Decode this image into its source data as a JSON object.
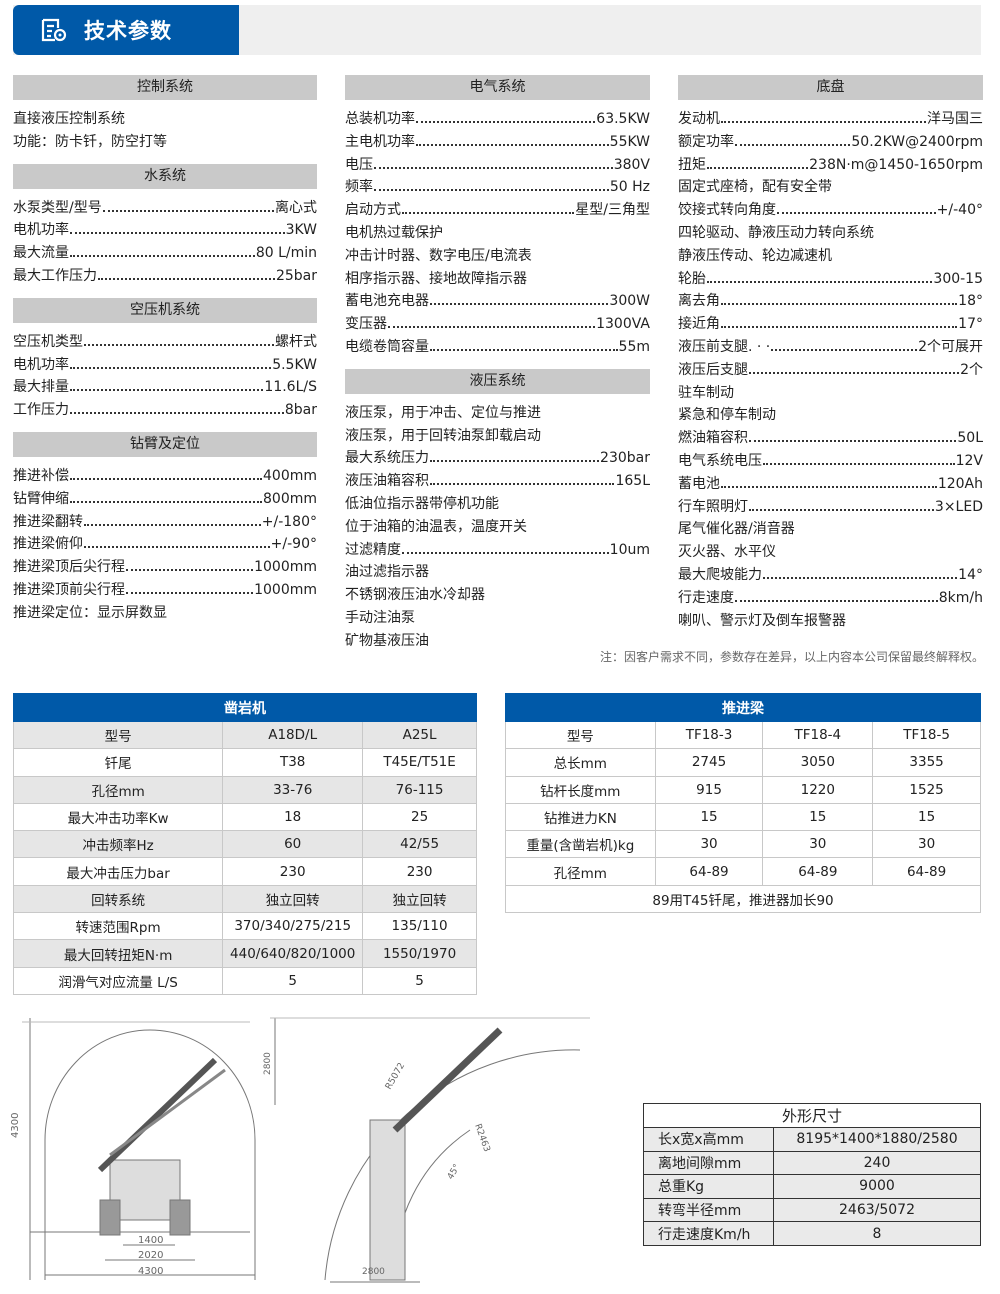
{
  "header": {
    "title": "技术参数",
    "icon": "document-settings-icon"
  },
  "columns": [
    [
      {
        "title": "控制系统",
        "items": [
          {
            "t": "直接液压控制系统"
          },
          {
            "t": "功能：防卡钎，防空打等"
          }
        ]
      },
      {
        "title": "水系统",
        "items": [
          {
            "k": "水泵类型/型号",
            "v": "离心式"
          },
          {
            "k": "电机功率",
            "v": "3KW"
          },
          {
            "k": "最大流量",
            "v": "80 L/min"
          },
          {
            "k": "最大工作压力",
            "v": "25bar"
          }
        ]
      },
      {
        "title": "空压机系统",
        "items": [
          {
            "k": "空压机类型",
            "v": "螺杆式"
          },
          {
            "k": "电机功率",
            "v": "5.5KW"
          },
          {
            "k": "最大排量",
            "v": "11.6L/S"
          },
          {
            "k": "工作压力",
            "v": "8bar"
          }
        ]
      },
      {
        "title": "钻臂及定位",
        "items": [
          {
            "k": "推进补偿",
            "v": "400mm"
          },
          {
            "k": "钻臂伸缩",
            "v": "800mm"
          },
          {
            "k": "推进梁翻转",
            "v": "+/-180°"
          },
          {
            "k": "推进梁俯仰",
            "v": "+/-90°"
          },
          {
            "k": "推进梁顶后尖行程",
            "v": "1000mm"
          },
          {
            "k": "推进梁顶前尖行程",
            "v": "1000mm"
          },
          {
            "t": "推进梁定位：显示屏数显"
          }
        ]
      }
    ],
    [
      {
        "title": "电气系统",
        "items": [
          {
            "k": "总装机功率",
            "v": "63.5KW"
          },
          {
            "k": "主电机功率",
            "v": "55KW"
          },
          {
            "k": "电压",
            "v": "380V"
          },
          {
            "k": "频率",
            "v": "50 Hz"
          },
          {
            "k": "启动方式",
            "v": "星型/三角型"
          },
          {
            "t": "电机热过载保护"
          },
          {
            "t": "冲击计时器、数字电压/电流表"
          },
          {
            "t": "相序指示器、接地故障指示器"
          },
          {
            "k": "蓄电池充电器",
            "v": "300W"
          },
          {
            "k": "变压器",
            "v": "1300VA"
          },
          {
            "k": "电缆卷筒容量",
            "v": "55m"
          }
        ]
      },
      {
        "title": "液压系统",
        "items": [
          {
            "t": "液压泵，用于冲击、定位与推进"
          },
          {
            "t": "液压泵，用于回转油泵卸载启动"
          },
          {
            "k": "最大系统压力",
            "v": "230bar"
          },
          {
            "k": "液压油箱容积",
            "v": "165L"
          },
          {
            "t": "低油位指示器带停机功能"
          },
          {
            "t": "位于油箱的油温表，温度开关"
          },
          {
            "k": "过滤精度",
            "v": "10um"
          },
          {
            "t": "油过滤指示器"
          },
          {
            "t": "不锈钢液压油水冷却器"
          },
          {
            "t": "手动注油泵"
          },
          {
            "t": "矿物基液压油"
          }
        ]
      }
    ],
    [
      {
        "title": "底盘",
        "items": [
          {
            "k": "发动机",
            "v": "洋马国三"
          },
          {
            "k": "额定功率",
            "v": "50.2KW@2400rpm"
          },
          {
            "k": "扭矩",
            "v": "238N·m@1450-1650rpm"
          },
          {
            "t": "固定式座椅，配有安全带"
          },
          {
            "k": "饺接式转向角度",
            "v": "+/-40°"
          },
          {
            "t": "四轮驱动、静液压动力转向系统"
          },
          {
            "t": "静液压传动、轮边减速机"
          },
          {
            "k": "轮胎",
            "v": "300-15"
          },
          {
            "k": "离去角",
            "v": "18°"
          },
          {
            "k": "接近角",
            "v": "17°"
          },
          {
            "k": "液压前支腿. · ·",
            "v": "2个可展开"
          },
          {
            "k": "液压后支腿",
            "v": "2个"
          },
          {
            "t": "驻车制动"
          },
          {
            "t": "紧急和停车制动"
          },
          {
            "k": "燃油箱容积",
            "v": "50L"
          },
          {
            "k": "电气系统电压",
            "v": "12V"
          },
          {
            "k": "蓄电池",
            "v": "120Ah"
          },
          {
            "k": "行车照明灯",
            "v": "3×LED"
          },
          {
            "t": "尾气催化器/消音器"
          },
          {
            "t": "灭火器、水平仪"
          },
          {
            "k": "最大爬坡能力",
            "v": "14°"
          },
          {
            "k": "行走速度",
            "v": "8km/h"
          },
          {
            "t": "喇叭、警示灯及倒车报警器"
          }
        ]
      }
    ]
  ],
  "note": "注：因客户需求不同，参数存在差异，以上内容本公司保留最终解释权。",
  "rock_drill": {
    "title": "凿岩机",
    "rows": [
      [
        "型号",
        "A18D/L",
        "A25L"
      ],
      [
        "钎尾",
        "T38",
        "T45E/T51E"
      ],
      [
        "孔径mm",
        "33-76",
        "76-115"
      ],
      [
        "最大冲击功率Kw",
        "18",
        "25"
      ],
      [
        "冲击频率Hz",
        "60",
        "42/55"
      ],
      [
        "最大冲击压力bar",
        "230",
        "230"
      ],
      [
        "回转系统",
        "独立回转",
        "独立回转"
      ],
      [
        "转速范围Rpm",
        "370/340/275/215",
        "135/110"
      ],
      [
        "最大回转扭矩N·m",
        "440/640/820/1000",
        "1550/1970"
      ],
      [
        "润滑气对应流量 L/S",
        "5",
        "5"
      ]
    ]
  },
  "feed_beam": {
    "title": "推进梁",
    "rows": [
      [
        "型号",
        "TF18-3",
        "TF18-4",
        "TF18-5"
      ],
      [
        "总长mm",
        "2745",
        "3050",
        "3355"
      ],
      [
        "钻杆长度mm",
        "915",
        "1220",
        "1525"
      ],
      [
        "钻推进力KN",
        "15",
        "15",
        "15"
      ],
      [
        "重量(含凿岩机)kg",
        "30",
        "30",
        "30"
      ],
      [
        "孔径mm",
        "64-89",
        "64-89",
        "64-89"
      ]
    ],
    "note": "89用T45钎尾，推进器加长90"
  },
  "dimensions": {
    "title": "外形尺寸",
    "rows": [
      [
        "长x宽x高mm",
        "8195*1400*1880/2580"
      ],
      [
        "离地间隙mm",
        "240"
      ],
      [
        "总重Kg",
        "9000"
      ],
      [
        "转弯半径mm",
        "2463/5072"
      ],
      [
        "行走速度Km/h",
        "8"
      ]
    ]
  },
  "drawings": {
    "front": {
      "height": "4300",
      "w1": "1400",
      "w2": "2020",
      "w3": "4300"
    },
    "side": {
      "height": "2800",
      "r1": "R5072",
      "r2": "R2463",
      "angle": "45°",
      "width": "2800"
    }
  },
  "colors": {
    "brand_blue": "#0059a8",
    "section_gray": "#c9c9c9"
  }
}
